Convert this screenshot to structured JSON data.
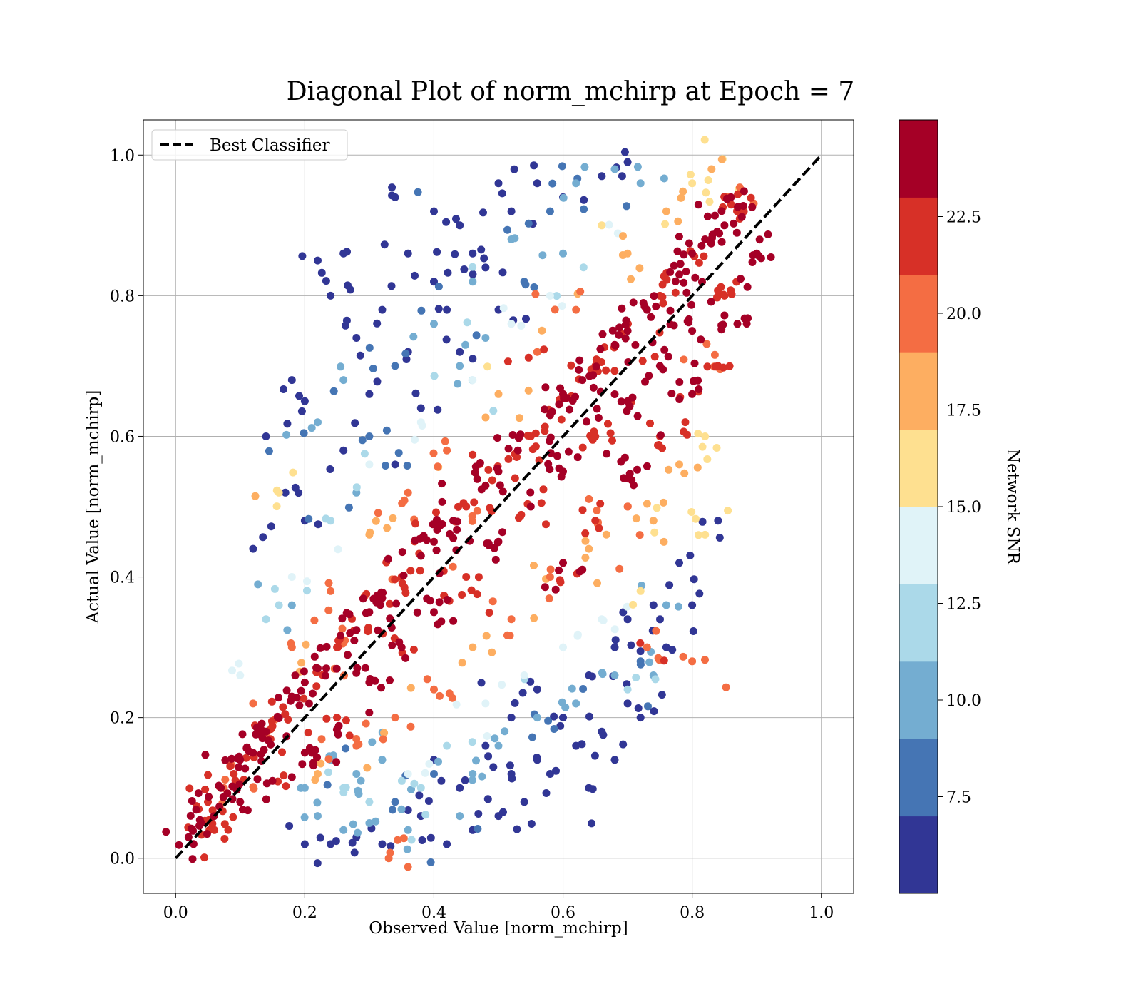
{
  "chart_data": {
    "type": "scatter",
    "title": "Diagonal Plot of norm_mchirp at Epoch = 7",
    "xlabel": "Observed Value [norm_mchirp]",
    "ylabel": "Actual Value [norm_mchirp]",
    "xlim": [
      -0.05,
      1.05
    ],
    "ylim": [
      -0.05,
      1.05
    ],
    "xticks": [
      "0.0",
      "0.2",
      "0.4",
      "0.6",
      "0.8",
      "1.0"
    ],
    "yticks": [
      "0.0",
      "0.2",
      "0.4",
      "0.6",
      "0.8",
      "1.0"
    ],
    "grid": true,
    "legend": {
      "placement": "upper-left",
      "entries": [
        "Best Classifier"
      ]
    },
    "reference_line": {
      "name": "Best Classifier",
      "style": "dashed",
      "color": "#000000",
      "from": [
        0.0,
        0.0
      ],
      "to": [
        1.0,
        1.0
      ]
    },
    "colorbar": {
      "label": "Network SNR",
      "min": 5.0,
      "max": 25.0,
      "ticks": [
        "7.5",
        "10.0",
        "12.5",
        "15.0",
        "17.5",
        "20.0",
        "22.5"
      ],
      "colors": [
        "#313695",
        "#4575b4",
        "#74add1",
        "#abd9e9",
        "#e0f3f8",
        "#fee090",
        "#fdae61",
        "#f46d43",
        "#d73027",
        "#a50026"
      ]
    },
    "points": [
      [
        0.02,
        0.03,
        24
      ],
      [
        0.04,
        0.05,
        23
      ],
      [
        0.05,
        0.08,
        22
      ],
      [
        0.07,
        0.1,
        24
      ],
      [
        0.09,
        0.12,
        21
      ],
      [
        0.1,
        0.14,
        24
      ],
      [
        0.12,
        0.15,
        23
      ],
      [
        0.14,
        0.18,
        24
      ],
      [
        0.16,
        0.2,
        22
      ],
      [
        0.18,
        0.23,
        24
      ],
      [
        0.2,
        0.25,
        23
      ],
      [
        0.22,
        0.27,
        24
      ],
      [
        0.25,
        0.3,
        21
      ],
      [
        0.27,
        0.32,
        24
      ],
      [
        0.3,
        0.35,
        23
      ],
      [
        0.32,
        0.37,
        24
      ],
      [
        0.35,
        0.4,
        22
      ],
      [
        0.38,
        0.43,
        24
      ],
      [
        0.4,
        0.45,
        23
      ],
      [
        0.43,
        0.48,
        24
      ],
      [
        0.45,
        0.5,
        21
      ],
      [
        0.48,
        0.53,
        24
      ],
      [
        0.5,
        0.55,
        23
      ],
      [
        0.53,
        0.58,
        24
      ],
      [
        0.55,
        0.6,
        22
      ],
      [
        0.58,
        0.63,
        24
      ],
      [
        0.6,
        0.66,
        23
      ],
      [
        0.63,
        0.68,
        24
      ],
      [
        0.65,
        0.7,
        21
      ],
      [
        0.68,
        0.73,
        24
      ],
      [
        0.7,
        0.75,
        23
      ],
      [
        0.73,
        0.78,
        24
      ],
      [
        0.75,
        0.8,
        22
      ],
      [
        0.78,
        0.83,
        24
      ],
      [
        0.8,
        0.86,
        23
      ],
      [
        0.82,
        0.88,
        24
      ],
      [
        0.85,
        0.9,
        24
      ],
      [
        0.86,
        0.94,
        23
      ],
      [
        0.88,
        0.92,
        21
      ],
      [
        0.9,
        0.86,
        24
      ],
      [
        0.06,
        0.04,
        22
      ],
      [
        0.1,
        0.08,
        24
      ],
      [
        0.15,
        0.11,
        23
      ],
      [
        0.2,
        0.15,
        24
      ],
      [
        0.25,
        0.2,
        22
      ],
      [
        0.3,
        0.25,
        24
      ],
      [
        0.35,
        0.3,
        23
      ],
      [
        0.4,
        0.35,
        24
      ],
      [
        0.45,
        0.4,
        22
      ],
      [
        0.5,
        0.45,
        24
      ],
      [
        0.55,
        0.5,
        23
      ],
      [
        0.6,
        0.55,
        24
      ],
      [
        0.65,
        0.6,
        22
      ],
      [
        0.7,
        0.65,
        24
      ],
      [
        0.75,
        0.7,
        23
      ],
      [
        0.8,
        0.75,
        24
      ],
      [
        0.85,
        0.8,
        22
      ],
      [
        0.87,
        0.76,
        24
      ],
      [
        0.84,
        0.7,
        21
      ],
      [
        0.8,
        0.66,
        23
      ],
      [
        0.75,
        0.6,
        22
      ],
      [
        0.7,
        0.54,
        24
      ],
      [
        0.65,
        0.48,
        21
      ],
      [
        0.6,
        0.42,
        23
      ],
      [
        0.12,
        0.22,
        20
      ],
      [
        0.18,
        0.3,
        19
      ],
      [
        0.24,
        0.38,
        20
      ],
      [
        0.3,
        0.46,
        18
      ],
      [
        0.36,
        0.52,
        20
      ],
      [
        0.42,
        0.58,
        19
      ],
      [
        0.5,
        0.66,
        18
      ],
      [
        0.56,
        0.72,
        20
      ],
      [
        0.62,
        0.78,
        19
      ],
      [
        0.7,
        0.86,
        18
      ],
      [
        0.76,
        0.92,
        17
      ],
      [
        0.8,
        0.96,
        16
      ],
      [
        0.83,
        0.98,
        17
      ],
      [
        0.66,
        0.9,
        15
      ],
      [
        0.58,
        0.8,
        14
      ],
      [
        0.52,
        0.76,
        13
      ],
      [
        0.46,
        0.68,
        13
      ],
      [
        0.38,
        0.62,
        14
      ],
      [
        0.3,
        0.56,
        13
      ],
      [
        0.24,
        0.48,
        12
      ],
      [
        0.18,
        0.4,
        13
      ],
      [
        0.14,
        0.34,
        12
      ],
      [
        0.1,
        0.26,
        14
      ],
      [
        0.16,
        0.36,
        11
      ],
      [
        0.22,
        0.12,
        18
      ],
      [
        0.28,
        0.16,
        20
      ],
      [
        0.34,
        0.2,
        19
      ],
      [
        0.4,
        0.24,
        20
      ],
      [
        0.46,
        0.3,
        18
      ],
      [
        0.52,
        0.34,
        20
      ],
      [
        0.58,
        0.4,
        19
      ],
      [
        0.64,
        0.44,
        18
      ],
      [
        0.7,
        0.5,
        20
      ],
      [
        0.74,
        0.48,
        17
      ],
      [
        0.78,
        0.56,
        18
      ],
      [
        0.82,
        0.6,
        16
      ],
      [
        0.72,
        0.38,
        15
      ],
      [
        0.66,
        0.34,
        14
      ],
      [
        0.6,
        0.3,
        13
      ],
      [
        0.54,
        0.26,
        13
      ],
      [
        0.48,
        0.22,
        14
      ],
      [
        0.42,
        0.16,
        12
      ],
      [
        0.36,
        0.12,
        13
      ],
      [
        0.3,
        0.08,
        12
      ],
      [
        0.26,
        0.1,
        11
      ],
      [
        0.32,
        0.14,
        10
      ],
      [
        0.38,
        0.1,
        11
      ],
      [
        0.44,
        0.06,
        10
      ],
      [
        0.22,
        0.06,
        9
      ],
      [
        0.26,
        0.04,
        10
      ],
      [
        0.3,
        0.05,
        9
      ],
      [
        0.34,
        0.08,
        8
      ],
      [
        0.28,
        0.12,
        9
      ],
      [
        0.24,
        0.14,
        10
      ],
      [
        0.2,
        0.1,
        9
      ],
      [
        0.36,
        0.04,
        10
      ],
      [
        0.4,
        0.12,
        8
      ],
      [
        0.46,
        0.12,
        9
      ],
      [
        0.5,
        0.16,
        10
      ],
      [
        0.56,
        0.2,
        9
      ],
      [
        0.62,
        0.22,
        10
      ],
      [
        0.68,
        0.26,
        9
      ],
      [
        0.72,
        0.28,
        8
      ],
      [
        0.76,
        0.36,
        10
      ],
      [
        0.3,
        0.6,
        8
      ],
      [
        0.26,
        0.68,
        9
      ],
      [
        0.22,
        0.62,
        10
      ],
      [
        0.28,
        0.52,
        9
      ],
      [
        0.34,
        0.7,
        8
      ],
      [
        0.4,
        0.76,
        9
      ],
      [
        0.46,
        0.82,
        10
      ],
      [
        0.52,
        0.88,
        9
      ],
      [
        0.58,
        0.92,
        8
      ],
      [
        0.62,
        0.96,
        9
      ],
      [
        0.68,
        0.98,
        10
      ],
      [
        0.72,
        0.96,
        9
      ],
      [
        0.6,
        0.86,
        10
      ],
      [
        0.54,
        0.82,
        8
      ],
      [
        0.48,
        0.74,
        9
      ],
      [
        0.44,
        0.7,
        10
      ],
      [
        0.24,
        0.8,
        6
      ],
      [
        0.26,
        0.86,
        6
      ],
      [
        0.22,
        0.85,
        6
      ],
      [
        0.34,
        0.94,
        6
      ],
      [
        0.4,
        0.92,
        6
      ],
      [
        0.5,
        0.96,
        6
      ],
      [
        0.56,
        0.96,
        6
      ],
      [
        0.44,
        0.9,
        6
      ],
      [
        0.36,
        0.86,
        6
      ],
      [
        0.4,
        0.82,
        6
      ],
      [
        0.32,
        0.78,
        6
      ],
      [
        0.46,
        0.86,
        6
      ],
      [
        0.52,
        0.92,
        6
      ],
      [
        0.6,
        0.94,
        6
      ],
      [
        0.66,
        0.97,
        6
      ],
      [
        0.7,
        0.99,
        6
      ],
      [
        0.18,
        0.68,
        6
      ],
      [
        0.2,
        0.65,
        6
      ],
      [
        0.14,
        0.6,
        6
      ],
      [
        0.17,
        0.52,
        6
      ],
      [
        0.12,
        0.44,
        6
      ],
      [
        0.2,
        0.48,
        6
      ],
      [
        0.26,
        0.58,
        6
      ],
      [
        0.28,
        0.74,
        6
      ],
      [
        0.3,
        0.66,
        6
      ],
      [
        0.36,
        0.72,
        6
      ],
      [
        0.42,
        0.78,
        6
      ],
      [
        0.48,
        0.84,
        6
      ],
      [
        0.38,
        0.64,
        6
      ],
      [
        0.34,
        0.56,
        6
      ],
      [
        0.44,
        0.72,
        6
      ],
      [
        0.5,
        0.78,
        6
      ],
      [
        0.42,
        0.02,
        6
      ],
      [
        0.46,
        0.04,
        6
      ],
      [
        0.5,
        0.06,
        6
      ],
      [
        0.54,
        0.08,
        6
      ],
      [
        0.58,
        0.12,
        6
      ],
      [
        0.62,
        0.16,
        6
      ],
      [
        0.66,
        0.18,
        6
      ],
      [
        0.7,
        0.22,
        6
      ],
      [
        0.64,
        0.1,
        6
      ],
      [
        0.68,
        0.14,
        6
      ],
      [
        0.72,
        0.2,
        6
      ],
      [
        0.76,
        0.3,
        6
      ],
      [
        0.8,
        0.36,
        6
      ],
      [
        0.74,
        0.36,
        6
      ],
      [
        0.78,
        0.42,
        6
      ],
      [
        0.84,
        0.48,
        6
      ],
      [
        0.2,
        0.02,
        6
      ],
      [
        0.24,
        0.02,
        6
      ],
      [
        0.28,
        0.03,
        6
      ],
      [
        0.32,
        0.02,
        6
      ],
      [
        0.38,
        0.06,
        6
      ],
      [
        0.44,
        0.1,
        6
      ],
      [
        0.52,
        0.12,
        6
      ],
      [
        0.56,
        0.14,
        6
      ],
      [
        0.6,
        0.2,
        6
      ],
      [
        0.64,
        0.26,
        6
      ],
      [
        0.68,
        0.3,
        6
      ],
      [
        0.7,
        0.34,
        6
      ],
      [
        0.56,
        0.24,
        6
      ],
      [
        0.52,
        0.2,
        6
      ],
      [
        0.48,
        0.16,
        6
      ],
      [
        0.4,
        0.14,
        6
      ],
      [
        0.16,
        0.52,
        16
      ],
      [
        0.82,
        0.46,
        16
      ],
      [
        0.8,
        0.28,
        20
      ],
      [
        0.73,
        0.3,
        20
      ],
      [
        0.62,
        0.22,
        10
      ],
      [
        0.7,
        0.24,
        12
      ],
      [
        0.74,
        0.26,
        9
      ],
      [
        0.33,
        0.0,
        20
      ]
    ]
  }
}
